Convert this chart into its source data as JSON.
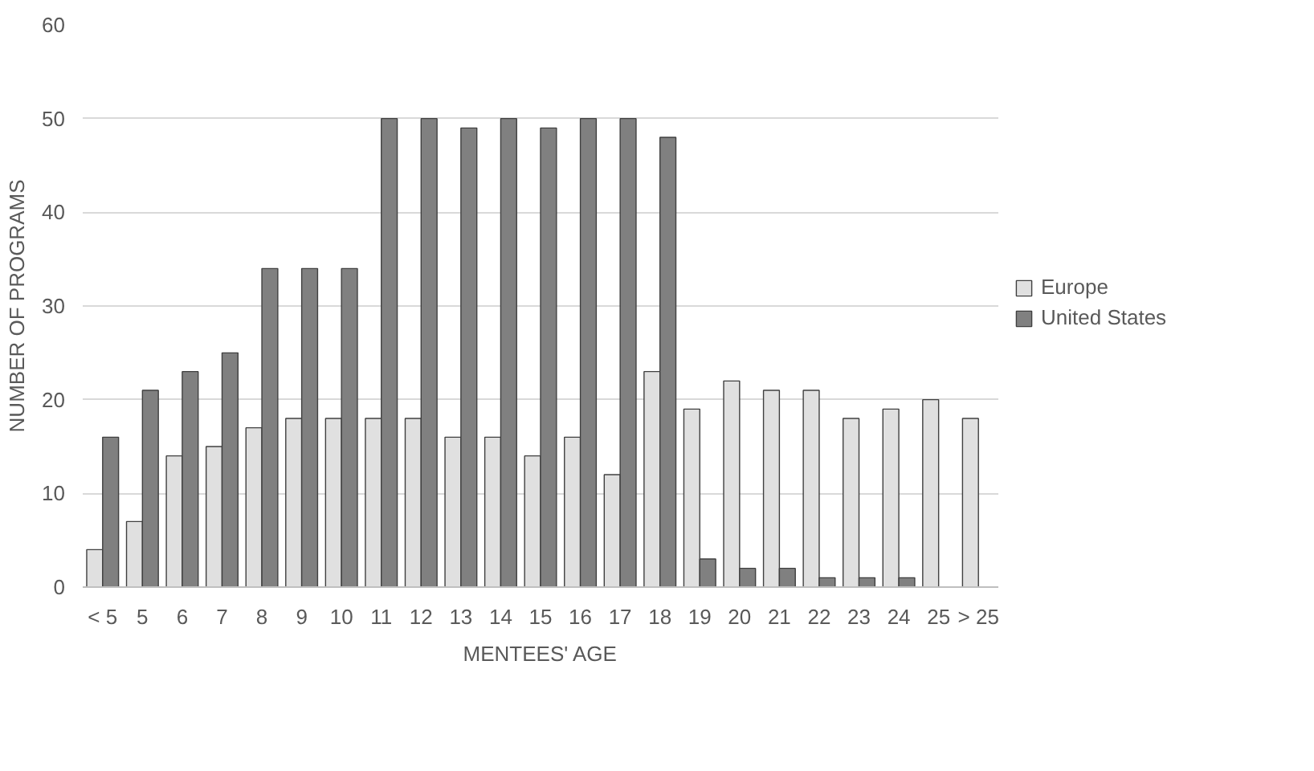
{
  "chart_data": {
    "type": "bar",
    "xlabel": "MENTEES' AGE",
    "ylabel": "NUMBER OF PROGRAMS",
    "categories": [
      "< 5",
      "5",
      "6",
      "7",
      "8",
      "9",
      "10",
      "11",
      "12",
      "13",
      "14",
      "15",
      "16",
      "17",
      "18",
      "19",
      "20",
      "21",
      "22",
      "23",
      "24",
      "25",
      "> 25"
    ],
    "series": [
      {
        "name": "Europe",
        "color": "#e0e0e0",
        "values": [
          4,
          7,
          14,
          15,
          17,
          18,
          18,
          18,
          18,
          16,
          16,
          14,
          16,
          12,
          23,
          19,
          22,
          21,
          21,
          18,
          19,
          20,
          18
        ]
      },
      {
        "name": "United States",
        "color": "#808080",
        "values": [
          16,
          21,
          23,
          25,
          34,
          34,
          34,
          50,
          50,
          49,
          50,
          49,
          50,
          50,
          48,
          3,
          2,
          2,
          1,
          1,
          1,
          null,
          null
        ]
      }
    ],
    "ylim": [
      0,
      60
    ],
    "yticks": [
      0,
      10,
      20,
      30,
      40,
      50,
      60
    ],
    "grid": "y",
    "legend": "right"
  }
}
